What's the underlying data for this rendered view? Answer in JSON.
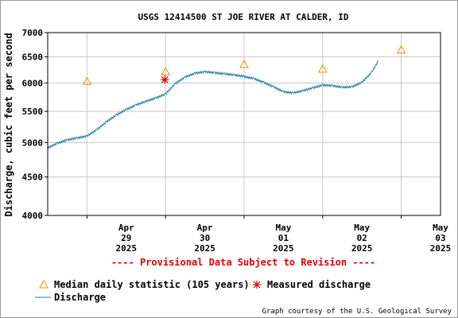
{
  "chart_data": {
    "type": "line",
    "title": "USGS 12414500 ST JOE RIVER AT CALDER, ID",
    "ylabel": "Discharge, cubic feet per second",
    "xlabel": "",
    "y_scale": "log",
    "ylim": [
      4000,
      7000
    ],
    "y_ticks": [
      4000,
      4500,
      5000,
      5500,
      6000,
      6500,
      7000
    ],
    "x_start": "2025-04-28T12:00",
    "x_end": "2025-05-03T12:00",
    "x_ticks": [
      {
        "month": "Apr",
        "day": "29",
        "year": "2025",
        "at": "2025-04-29T00:00"
      },
      {
        "month": "Apr",
        "day": "30",
        "year": "2025",
        "at": "2025-04-30T00:00"
      },
      {
        "month": "May",
        "day": "01",
        "year": "2025",
        "at": "2025-05-01T00:00"
      },
      {
        "month": "May",
        "day": "02",
        "year": "2025",
        "at": "2025-05-02T00:00"
      },
      {
        "month": "May",
        "day": "03",
        "year": "2025",
        "at": "2025-05-03T00:00"
      }
    ],
    "grid": true,
    "series": [
      {
        "name": "Discharge",
        "kind": "line",
        "color": "#1a7aa6",
        "points": [
          [
            "2025-04-28T12:00",
            4920
          ],
          [
            "2025-04-28T15:00",
            4990
          ],
          [
            "2025-04-28T18:00",
            5040
          ],
          [
            "2025-04-28T21:00",
            5070
          ],
          [
            "2025-04-29T00:00",
            5100
          ],
          [
            "2025-04-29T03:00",
            5200
          ],
          [
            "2025-04-29T06:00",
            5330
          ],
          [
            "2025-04-29T09:00",
            5440
          ],
          [
            "2025-04-29T12:00",
            5530
          ],
          [
            "2025-04-29T15:00",
            5610
          ],
          [
            "2025-04-29T18:00",
            5670
          ],
          [
            "2025-04-29T21:00",
            5730
          ],
          [
            "2025-04-30T00:00",
            5800
          ],
          [
            "2025-04-30T03:00",
            5990
          ],
          [
            "2025-04-30T06:00",
            6110
          ],
          [
            "2025-04-30T09:00",
            6180
          ],
          [
            "2025-04-30T12:00",
            6210
          ],
          [
            "2025-04-30T15:00",
            6190
          ],
          [
            "2025-04-30T18:00",
            6170
          ],
          [
            "2025-04-30T21:00",
            6150
          ],
          [
            "2025-05-01T00:00",
            6120
          ],
          [
            "2025-05-01T03:00",
            6080
          ],
          [
            "2025-05-01T06:00",
            6010
          ],
          [
            "2025-05-01T09:00",
            5930
          ],
          [
            "2025-05-01T12:00",
            5840
          ],
          [
            "2025-05-01T15:00",
            5820
          ],
          [
            "2025-05-01T18:00",
            5860
          ],
          [
            "2025-05-01T21:00",
            5910
          ],
          [
            "2025-05-02T00:00",
            5960
          ],
          [
            "2025-05-02T03:00",
            5950
          ],
          [
            "2025-05-02T06:00",
            5920
          ],
          [
            "2025-05-02T09:00",
            5930
          ],
          [
            "2025-05-02T12:00",
            6010
          ],
          [
            "2025-05-02T15:00",
            6200
          ],
          [
            "2025-05-02T17:00",
            6420
          ]
        ]
      },
      {
        "name": "Median daily statistic (105 years)",
        "kind": "marker",
        "marker": "triangle",
        "color": "#e09600",
        "points": [
          [
            "2025-04-29T00:00",
            6030
          ],
          [
            "2025-04-30T00:00",
            6210
          ],
          [
            "2025-05-01T00:00",
            6350
          ],
          [
            "2025-05-02T00:00",
            6260
          ],
          [
            "2025-05-03T00:00",
            6640
          ]
        ]
      },
      {
        "name": "Measured discharge",
        "kind": "marker",
        "marker": "asterisk",
        "color": "#e00000",
        "points": [
          [
            "2025-04-29T23:45",
            6060
          ]
        ]
      }
    ],
    "provisional_note": "---- Provisional Data Subject to Revision ----",
    "legend": [
      {
        "label": "Median daily statistic (105 years)",
        "symbol": "triangle",
        "color": "#e09600"
      },
      {
        "label": "Measured discharge",
        "symbol": "asterisk",
        "color": "#e00000"
      },
      {
        "label": "Discharge",
        "symbol": "line",
        "color": "#1a7aa6"
      }
    ],
    "credit": "Graph courtesy of the U.S. Geological Survey"
  }
}
